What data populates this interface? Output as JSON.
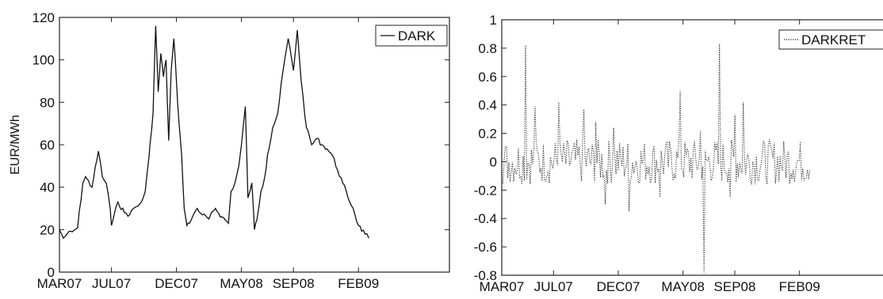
{
  "chart_data": [
    {
      "type": "line",
      "ylabel": "EUR/MWh",
      "ylim": [
        0,
        120
      ],
      "yticks": [
        0,
        20,
        40,
        60,
        80,
        100,
        120
      ],
      "xlim": [
        0,
        30
      ],
      "xticks": [
        {
          "x": 0,
          "label": "MAR07"
        },
        {
          "x": 4,
          "label": "JUL07"
        },
        {
          "x": 9,
          "label": "DEC07"
        },
        {
          "x": 14,
          "label": "MAY08"
        },
        {
          "x": 18,
          "label": "SEP08"
        },
        {
          "x": 23,
          "label": "FEB09"
        }
      ],
      "legend_position": "top-right",
      "series": [
        {
          "name": "DARK",
          "style": "solid",
          "x": [
            0,
            0.3,
            0.6,
            1.0,
            1.4,
            1.8,
            2.0,
            2.1,
            2.5,
            3.0,
            3.3,
            3.6,
            3.9,
            4.0,
            4.5,
            5.0,
            5.4,
            5.7,
            6.0,
            6.3,
            6.6,
            6.9,
            7.0,
            7.2,
            7.4,
            7.6,
            7.8,
            8.0,
            8.2,
            8.4,
            8.6,
            8.8,
            9.0,
            9.2,
            9.4,
            9.6,
            9.8,
            10.0,
            10.3,
            10.6,
            11.0,
            11.5,
            12.0,
            12.5,
            13.0,
            13.2,
            13.5,
            13.8,
            14.0,
            14.3,
            14.5,
            14.8,
            15.0,
            15.2,
            15.5,
            15.8,
            16.0,
            16.4,
            16.8,
            17.2,
            17.6,
            18.0,
            18.3,
            18.6,
            19.0,
            19.4,
            19.8,
            20.2,
            20.6,
            21.0,
            21.4,
            21.8,
            22.2,
            22.6,
            23.0,
            23.5,
            23.8
          ],
          "y": [
            20,
            16,
            18,
            19,
            21,
            42,
            45,
            44,
            40,
            57,
            45,
            42,
            30,
            22,
            33,
            28,
            27,
            30,
            31,
            33,
            38,
            55,
            62,
            75,
            116,
            85,
            103,
            92,
            100,
            62,
            95,
            110,
            90,
            70,
            55,
            30,
            22,
            23,
            27,
            30,
            27,
            25,
            30,
            26,
            23,
            38,
            42,
            50,
            60,
            78,
            35,
            42,
            20,
            25,
            38,
            45,
            55,
            68,
            75,
            95,
            110,
            95,
            114,
            90,
            68,
            60,
            63,
            60,
            58,
            55,
            48,
            42,
            35,
            30,
            22,
            18,
            16
          ]
        }
      ]
    },
    {
      "type": "line",
      "ylim": [
        -0.8,
        1
      ],
      "yticks": [
        -0.8,
        -0.6,
        -0.4,
        -0.2,
        0,
        0.2,
        0.4,
        0.6,
        0.8,
        1
      ],
      "ytick_labels": [
        "-0.8",
        "-0.6",
        "-0.4",
        "-0.2",
        "0",
        "0.2",
        "0.4",
        "0.6",
        "0.8",
        "1"
      ],
      "xlim": [
        0,
        30
      ],
      "xticks": [
        {
          "x": 0,
          "label": "MAR07"
        },
        {
          "x": 4,
          "label": "JUL07"
        },
        {
          "x": 9,
          "label": "DEC07"
        },
        {
          "x": 14,
          "label": "MAY08"
        },
        {
          "x": 18,
          "label": "SEP08"
        },
        {
          "x": 23,
          "label": "FEB09"
        }
      ],
      "legend_position": "top-right",
      "series": [
        {
          "name": "DARKRET",
          "style": "dotted",
          "spikes": [
            {
              "x": 1.8,
              "y": 0.82
            },
            {
              "x": 2.6,
              "y": 0.39
            },
            {
              "x": 4.4,
              "y": 0.42
            },
            {
              "x": 6.3,
              "y": 0.37
            },
            {
              "x": 7.3,
              "y": 0.28
            },
            {
              "x": 8.0,
              "y": -0.3
            },
            {
              "x": 8.6,
              "y": 0.24
            },
            {
              "x": 9.8,
              "y": -0.35
            },
            {
              "x": 12.2,
              "y": -0.25
            },
            {
              "x": 13.8,
              "y": 0.5
            },
            {
              "x": 15.6,
              "y": -0.78
            },
            {
              "x": 15.3,
              "y": 0.22
            },
            {
              "x": 16.8,
              "y": 0.83
            },
            {
              "x": 17.6,
              "y": -0.25
            },
            {
              "x": 18.0,
              "y": 0.33
            },
            {
              "x": 18.6,
              "y": 0.42
            }
          ],
          "noise_range": [
            -0.1,
            0.1
          ],
          "x_end": 23.8
        }
      ]
    }
  ]
}
